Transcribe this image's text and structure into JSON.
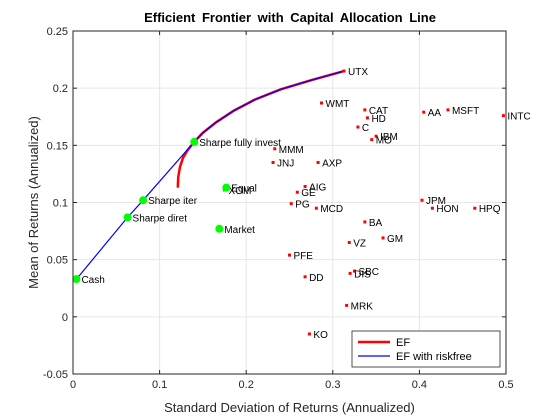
{
  "chart_data": {
    "type": "scatter",
    "title": "Efficient Frontier with Capital Allocation Line",
    "xlabel": "Standard Deviation of Returns (Annualized)",
    "ylabel": "Mean of Returns (Annualized)",
    "xlim": [
      0,
      0.5
    ],
    "ylim": [
      -0.05,
      0.25
    ],
    "xticks": [
      0,
      0.1,
      0.2,
      0.3,
      0.4,
      0.5
    ],
    "xtick_labels": [
      "0",
      "0.1",
      "0.2",
      "0.3",
      "0.4",
      "0.5"
    ],
    "yticks": [
      -0.05,
      0,
      0.05,
      0.1,
      0.15,
      0.2,
      0.25
    ],
    "ytick_labels": [
      "-0.05",
      "0",
      "0.05",
      "0.1",
      "0.15",
      "0.2",
      "0.25"
    ],
    "grid": true,
    "legend_position": "bottom-right",
    "colors": {
      "ef": "#ff0000",
      "riskfree": "#0000ff",
      "assets": "#ff0000",
      "portfolios": "#00ff00"
    },
    "series": [
      {
        "name": "EF",
        "type": "line",
        "x": [
          0.121,
          0.1215,
          0.1235,
          0.127,
          0.1325,
          0.14,
          0.15,
          0.165,
          0.185,
          0.21,
          0.24,
          0.275,
          0.313
        ],
        "y": [
          0.113,
          0.122,
          0.131,
          0.139,
          0.146,
          0.153,
          0.161,
          0.17,
          0.18,
          0.19,
          0.199,
          0.207,
          0.215
        ]
      },
      {
        "name": "EF with riskfree",
        "type": "line",
        "x": [
          0.004,
          0.063,
          0.081,
          0.14,
          0.15,
          0.165,
          0.185,
          0.21,
          0.24,
          0.275,
          0.313
        ],
        "y": [
          0.033,
          0.087,
          0.102,
          0.153,
          0.161,
          0.17,
          0.18,
          0.19,
          0.199,
          0.207,
          0.215
        ]
      }
    ],
    "assets": [
      {
        "label": "UTX",
        "x": 0.313,
        "y": 0.215
      },
      {
        "label": "WMT",
        "x": 0.287,
        "y": 0.187
      },
      {
        "label": "CAT",
        "x": 0.337,
        "y": 0.181
      },
      {
        "label": "HD",
        "x": 0.34,
        "y": 0.174
      },
      {
        "label": "AA",
        "x": 0.405,
        "y": 0.179
      },
      {
        "label": "MSFT",
        "x": 0.433,
        "y": 0.181
      },
      {
        "label": "INTC",
        "x": 0.497,
        "y": 0.176
      },
      {
        "label": "C",
        "x": 0.329,
        "y": 0.166
      },
      {
        "label": "IBM",
        "x": 0.35,
        "y": 0.158
      },
      {
        "label": "MO",
        "x": 0.345,
        "y": 0.155
      },
      {
        "label": "MMM",
        "x": 0.233,
        "y": 0.147
      },
      {
        "label": "JNJ",
        "x": 0.231,
        "y": 0.135
      },
      {
        "label": "AXP",
        "x": 0.283,
        "y": 0.135
      },
      {
        "label": "AIG",
        "x": 0.268,
        "y": 0.114
      },
      {
        "label": "GE",
        "x": 0.259,
        "y": 0.109
      },
      {
        "label": "XOM",
        "x": 0.175,
        "y": 0.111
      },
      {
        "label": "PG",
        "x": 0.252,
        "y": 0.099
      },
      {
        "label": "MCD",
        "x": 0.281,
        "y": 0.095
      },
      {
        "label": "JPM",
        "x": 0.403,
        "y": 0.102
      },
      {
        "label": "HON",
        "x": 0.415,
        "y": 0.095
      },
      {
        "label": "HPQ",
        "x": 0.464,
        "y": 0.095
      },
      {
        "label": "BA",
        "x": 0.337,
        "y": 0.083
      },
      {
        "label": "VZ",
        "x": 0.319,
        "y": 0.065
      },
      {
        "label": "GM",
        "x": 0.358,
        "y": 0.069
      },
      {
        "label": "PFE",
        "x": 0.25,
        "y": 0.054
      },
      {
        "label": "SBC",
        "x": 0.325,
        "y": 0.04
      },
      {
        "label": "DIS",
        "x": 0.32,
        "y": 0.038
      },
      {
        "label": "DD",
        "x": 0.268,
        "y": 0.035
      },
      {
        "label": "MRK",
        "x": 0.316,
        "y": 0.01
      },
      {
        "label": "KO",
        "x": 0.273,
        "y": -0.015
      }
    ],
    "portfolios": [
      {
        "label": "Cash",
        "x": 0.004,
        "y": 0.033
      },
      {
        "label": "Sharpe diret",
        "x": 0.063,
        "y": 0.087
      },
      {
        "label": "Sharpe iter",
        "x": 0.081,
        "y": 0.102
      },
      {
        "label": "Sharpe fully invest",
        "x": 0.14,
        "y": 0.153
      },
      {
        "label": "Equal",
        "x": 0.177,
        "y": 0.113
      },
      {
        "label": "Market",
        "x": 0.169,
        "y": 0.077
      }
    ]
  }
}
